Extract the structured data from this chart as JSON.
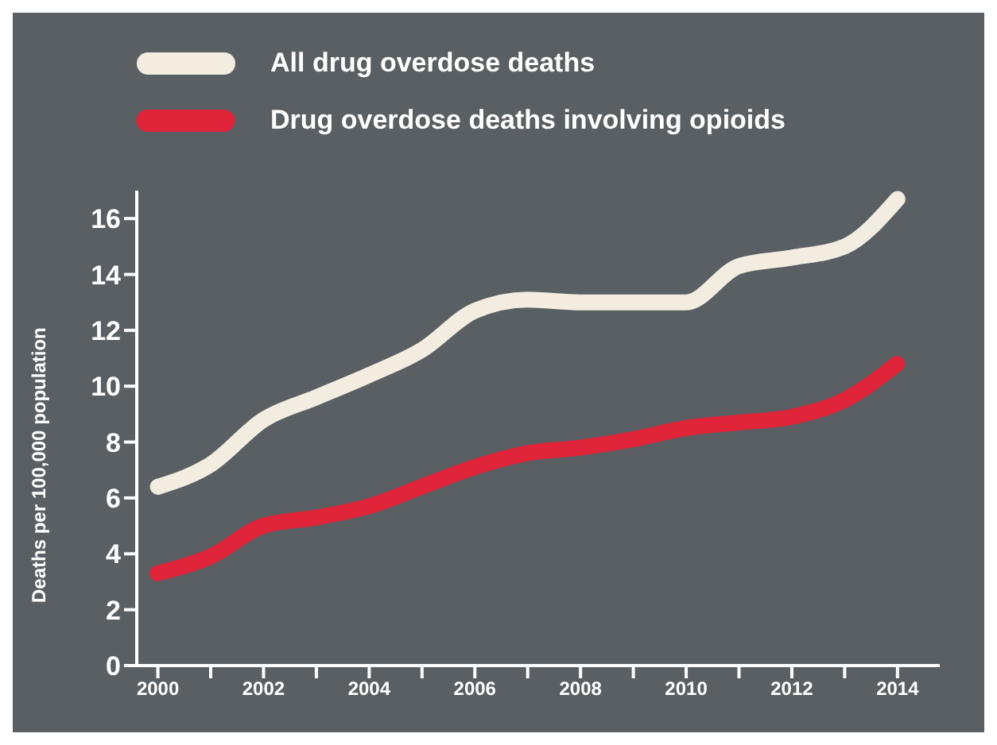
{
  "chart_data": {
    "type": "line",
    "ylabel": "Deaths per 100,000 population",
    "x": [
      2000,
      2001,
      2002,
      2003,
      2004,
      2005,
      2006,
      2007,
      2008,
      2009,
      2010,
      2011,
      2012,
      2013,
      2014
    ],
    "series": [
      {
        "name": "All drug overdose deaths",
        "color": "#f2ede0",
        "values": [
          6.4,
          7.2,
          8.8,
          9.6,
          10.4,
          11.3,
          12.7,
          13.1,
          13.0,
          13.0,
          13.0,
          14.3,
          14.6,
          15.0,
          16.7
        ]
      },
      {
        "name": "Drug overdose deaths involving opioids",
        "color": "#e0243a",
        "values": [
          3.3,
          3.9,
          5.0,
          5.3,
          5.7,
          6.4,
          7.1,
          7.6,
          7.8,
          8.1,
          8.5,
          8.7,
          8.9,
          9.5,
          10.8
        ]
      }
    ],
    "xlim": [
      1999.6,
      2014.8
    ],
    "xticks": [
      2000,
      {
        "value": 2001,
        "label": null
      },
      2002,
      {
        "value": 2003,
        "label": null
      },
      2004,
      {
        "value": 2005,
        "label": null
      },
      2006,
      {
        "value": 2007,
        "label": null
      },
      2008,
      {
        "value": 2009,
        "label": null
      },
      2010,
      {
        "value": 2011,
        "label": null
      },
      2012,
      {
        "value": 2013,
        "label": null
      },
      2014
    ],
    "ylim": [
      0,
      17
    ],
    "yticks": [
      0,
      2,
      4,
      6,
      8,
      10,
      12,
      14,
      16
    ],
    "grid": false,
    "legend": "top",
    "marker": "none",
    "line_style": "solid"
  }
}
